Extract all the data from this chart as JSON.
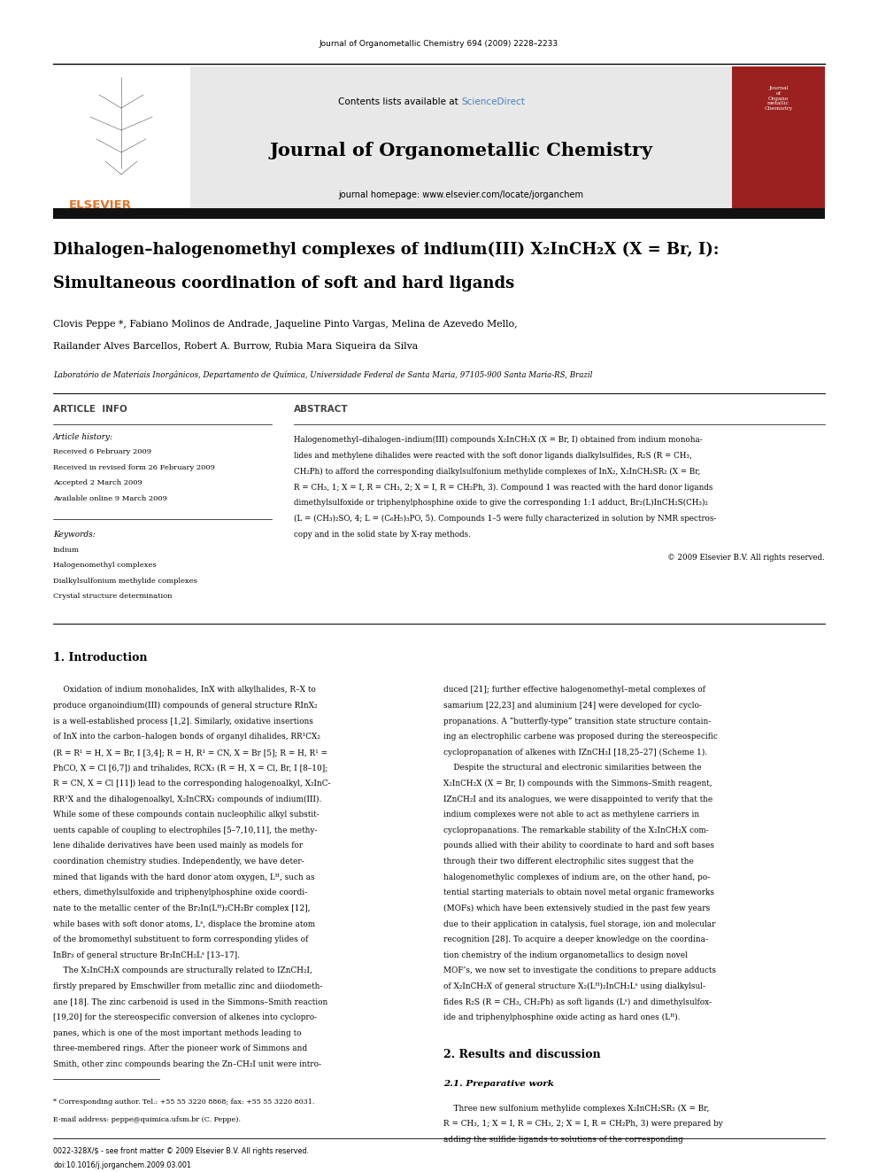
{
  "page_width": 9.92,
  "page_height": 13.23,
  "background_color": "#ffffff",
  "top_journal_ref": "Journal of Organometallic Chemistry 694 (2009) 2228–2233",
  "header_contents_plain": "Contents lists available at ",
  "header_sciencedirect": "ScienceDirect",
  "header_sciencedirect_color": "#4a7ebf",
  "header_journal_name": "Journal of Organometallic Chemistry",
  "header_homepage": "journal homepage: www.elsevier.com/locate/jorganchem",
  "elsevier_color": "#e87020",
  "article_title_line1": "Dihalogen–halogenomethyl complexes of indium(III) X₂InCH₂X (X = Br, I):",
  "article_title_line2": "Simultaneous coordination of soft and hard ligands",
  "authors_line1": "Clovis Peppe *, Fabiano Molinos de Andrade, Jaqueline Pinto Vargas, Melina de Azevedo Mello,",
  "authors_line2": "Railander Alves Barcellos, Robert A. Burrow, Rubia Mara Siqueira da Silva",
  "affiliation": "Laboratório de Materiais Inorgânicos, Departamento de Química, Universidade Federal de Santa Maria, 97105-900 Santa Maria-RS, Brazil",
  "article_info_header": "ARTICLE  INFO",
  "abstract_header": "ABSTRACT",
  "article_history_header": "Article history:",
  "received1": "Received 6 February 2009",
  "received2": "Received in revised form 26 February 2009",
  "accepted": "Accepted 2 March 2009",
  "available": "Available online 9 March 2009",
  "keywords_header": "Keywords:",
  "keyword1": "Indium",
  "keyword2": "Halogenomethyl complexes",
  "keyword3": "Dialkylsulfonium methylide complexes",
  "keyword4": "Crystal structure determination",
  "copyright": "© 2009 Elsevier B.V. All rights reserved.",
  "intro_header": "1. Introduction",
  "results_header": "2. Results and discussion",
  "results_sub_header": "2.1. Preparative work",
  "footer_left": "0022-328X/$ - see front matter © 2009 Elsevier B.V. All rights reserved.",
  "footer_doi": "doi:10.1016/j.jorganchem.2009.03.001",
  "footer_star": "* Corresponding author. Tel.: +55 55 3220 8868; fax: +55 55 3220 8031.",
  "footer_email": "E-mail address: peppe@quimica.ufsm.br (C. Peppe).",
  "link_color": "#4a7ebf",
  "abstract_lines": [
    "Halogenomethyl–dihalogen–indium(III) compounds X₂InCH₂X (X = Br, I) obtained from indium monoha-",
    "lides and methylene dihalides were reacted with the soft donor ligands dialkylsulfides, R₂S (R = CH₃,",
    "CH₂Ph) to afford the corresponding dialkylsulfonium methylide complexes of InX₂, X₂InCH₂SR₂ (X = Br,",
    "R = CH₃, 1; X = I, R = CH₃, 2; X = I, R = CH₂Ph, 3). Compound 1 was reacted with the hard donor ligands",
    "dimethylsulfoxide or triphenylphosphine oxide to give the corresponding 1:1 adduct, Br₂(L)InCH₂S(CH₃)₂",
    "(L = (CH₃)₂SO, 4; L = (C₆H₅)₃PO, 5). Compounds 1–5 were fully characterized in solution by NMR spectros-",
    "copy and in the solid state by X-ray methods."
  ],
  "intro_left_lines": [
    "    Oxidation of indium monohalides, InX with alkylhalides, R–X to",
    "produce organoindium(III) compounds of general structure RInX₂",
    "is a well-established process [1,2]. Similarly, oxidative insertions",
    "of InX into the carbon–halogen bonds of organyl dihalides, RR¹CX₂",
    "(R = R¹ = H, X = Br, I [3,4]; R = H, R¹ = CN, X = Br [5]; R = H, R¹ =",
    "PhCO, X = Cl [6,7]) and trihalides, RCX₃ (R = H, X = Cl, Br, I [8–10];",
    "R = CN, X = Cl [11]) lead to the corresponding halogenoalkyl, X₂InC-",
    "RR¹X and the dihalogenoalkyl, X₂InCRX₂ compounds of indium(III).",
    "While some of these compounds contain nucleophilic alkyl substit-",
    "uents capable of coupling to electrophiles [5–7,10,11], the methy-",
    "lene dihalide derivatives have been used mainly as models for",
    "coordination chemistry studies. Independently, we have deter-",
    "mined that ligands with the hard donor atom oxygen, Lᴴ, such as",
    "ethers, dimethylsulfoxide and triphenylphosphine oxide coordi-",
    "nate to the metallic center of the Br₂In(Lᴴ)₂CH₂Br complex [12],",
    "while bases with soft donor atoms, Lˢ, displace the bromine atom",
    "of the bromomethyl substituent to form corresponding ylides of",
    "InBr₃ of general structure Br₃InCH₂Lˢ [13–17].",
    "    The X₂InCH₂X compounds are structurally related to IZnCH₂I,",
    "firstly prepared by Emschwiller from metallic zinc and diiodometh-",
    "ane [18]. The zinc carbenoid is used in the Simmons–Smith reaction",
    "[19,20] for the stereospecific conversion of alkenes into cyclopro-",
    "panes, which is one of the most important methods leading to",
    "three-membered rings. After the pioneer work of Simmons and",
    "Smith, other zinc compounds bearing the Zn–CH₂I unit were intro-"
  ],
  "intro_right_lines": [
    "duced [21]; further effective halogenomethyl–metal complexes of",
    "samarium [22,23] and aluminium [24] were developed for cyclo-",
    "propanations. A “butterfly-type” transition state structure contain-",
    "ing an electrophilic carbene was proposed during the stereospecific",
    "cyclopropanation of alkenes with IZnCH₂I [18,25–27] (Scheme 1).",
    "    Despite the structural and electronic similarities between the",
    "X₂InCH₂X (X = Br, I) compounds with the Simmons–Smith reagent,",
    "IZnCH₂I and its analogues, we were disappointed to verify that the",
    "indium complexes were not able to act as methylene carriers in",
    "cyclopropanations. The remarkable stability of the X₂InCH₂X com-",
    "pounds allied with their ability to coordinate to hard and soft bases",
    "through their two different electrophilic sites suggest that the",
    "halogenomethylic complexes of indium are, on the other hand, po-",
    "tential starting materials to obtain novel metal organic frameworks",
    "(MOFs) which have been extensively studied in the past few years",
    "due to their application in catalysis, fuel storage, ion and molecular",
    "recognition [28]. To acquire a deeper knowledge on the coordina-",
    "tion chemistry of the indium organometallics to design novel",
    "MOF’s, we now set to investigate the conditions to prepare adducts",
    "of X₂InCH₂X of general structure X₂(Lᴴ)₂InCH₂Lˢ using dialkylsul-",
    "fides R₂S (R = CH₃, CH₂Ph) as soft ligands (Lˢ) and dimethylsulfox-",
    "ide and triphenylphosphine oxide acting as hard ones (Lᴴ)."
  ],
  "results_right_lines": [
    "    Three new sulfonium methylide complexes X₂InCH₂SR₂ (X = Br,",
    "R = CH₃, 1; X = I, R = CH₃, 2; X = I, R = CH₂Ph, 3) were prepared by",
    "adding the sulfide ligands to solutions of the corresponding"
  ]
}
